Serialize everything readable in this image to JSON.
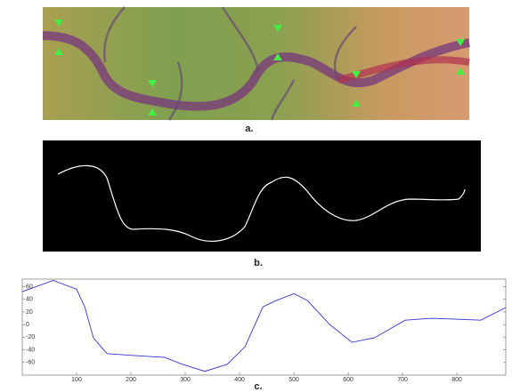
{
  "panels": {
    "a": "a.",
    "b": "b.",
    "c": "c."
  },
  "chart_data": {
    "type": "line",
    "x": [
      0,
      57,
      100,
      115,
      131,
      156,
      205,
      262,
      295,
      336,
      377,
      410,
      443,
      467,
      500,
      525,
      566,
      607,
      648,
      705,
      754,
      844,
      890
    ],
    "series": [
      {
        "color": "#3333cc",
        "values": [
          52,
          70,
          56,
          28,
          -21,
          -46,
          -49,
          -52,
          -63,
          -74,
          -63,
          -35,
          28,
          38,
          49,
          38,
          0,
          -28,
          -21,
          7,
          10,
          7,
          27
        ]
      }
    ],
    "xlim": [
      0,
      890
    ],
    "xticks": [
      100,
      200,
      300,
      400,
      500,
      600,
      700,
      800
    ],
    "ylim": [
      -80,
      72
    ],
    "yticks": [
      60,
      40,
      20,
      0,
      -20,
      -40,
      -60
    ]
  }
}
